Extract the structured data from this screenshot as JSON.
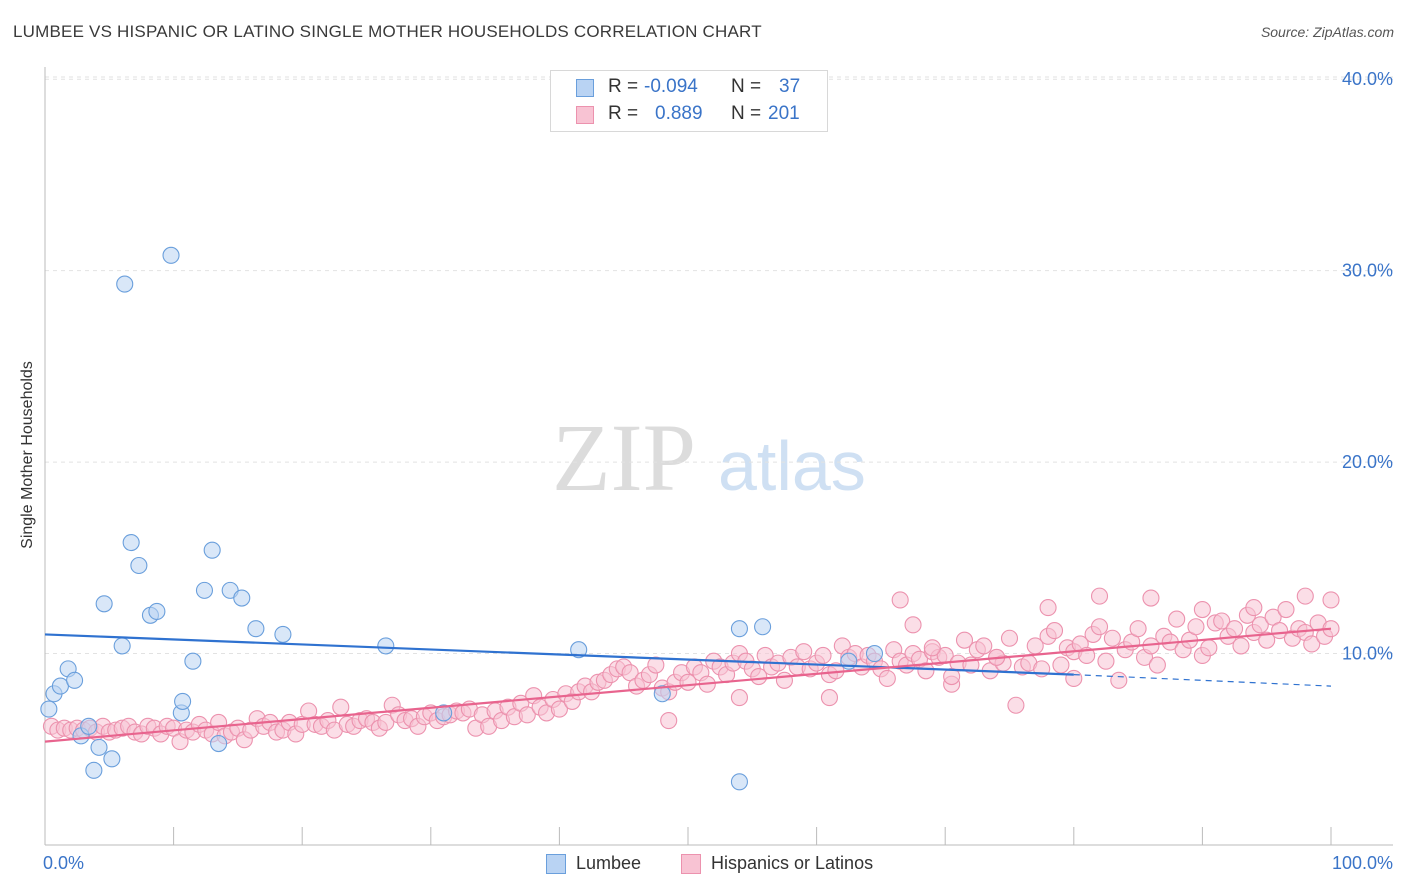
{
  "title": "LUMBEE VS HISPANIC OR LATINO SINGLE MOTHER HOUSEHOLDS CORRELATION CHART",
  "source": "Source: ZipAtlas.com",
  "watermark": {
    "zip": "ZIP",
    "atlas": "atlas"
  },
  "legend": {
    "r_label": "R =",
    "n_label": "N =",
    "rows": [
      {
        "r": "-0.094",
        "n": "37"
      },
      {
        "r": "0.889",
        "n": "201"
      }
    ]
  },
  "colors": {
    "lumbee_fill": "#b9d3f3",
    "lumbee_stroke": "#6a9fdc",
    "lumbee_line": "#2f72d0",
    "hisp_fill": "#f8c3d3",
    "hisp_stroke": "#ec92ae",
    "hisp_line": "#e8648e",
    "tick_label": "#3a74c8"
  },
  "chart_data": {
    "type": "scatter",
    "title": "LUMBEE VS HISPANIC OR LATINO SINGLE MOTHER HOUSEHOLDS CORRELATION CHART",
    "xlabel": "",
    "ylabel": "Single Mother Households",
    "xlim": [
      0,
      100
    ],
    "ylim": [
      0,
      40.9
    ],
    "x_tick_labels": [
      "0.0%",
      "100.0%"
    ],
    "y_ticks": [
      10,
      20,
      30,
      40
    ],
    "y_tick_labels": [
      "10.0%",
      "20.0%",
      "30.0%",
      "40.0%"
    ],
    "grid": "horizontal dashed",
    "legend_position": "top-center and bottom",
    "series": [
      {
        "name": "Lumbee",
        "r": -0.094,
        "n": 37,
        "trend": {
          "x0": 0,
          "y0": 11.0,
          "x1": 80,
          "y1": 8.9,
          "x_end": 100,
          "y_end": 8.3
        },
        "points": [
          [
            0.3,
            7.1
          ],
          [
            0.7,
            7.9
          ],
          [
            1.2,
            8.3
          ],
          [
            1.8,
            9.2
          ],
          [
            2.3,
            8.6
          ],
          [
            2.8,
            5.7
          ],
          [
            3.4,
            6.2
          ],
          [
            3.8,
            3.9
          ],
          [
            4.2,
            5.1
          ],
          [
            4.6,
            12.6
          ],
          [
            5.2,
            4.5
          ],
          [
            6.0,
            10.4
          ],
          [
            6.7,
            15.8
          ],
          [
            7.3,
            14.6
          ],
          [
            8.2,
            12.0
          ],
          [
            8.7,
            12.2
          ],
          [
            9.8,
            30.8
          ],
          [
            6.2,
            29.3
          ],
          [
            10.6,
            6.9
          ],
          [
            10.7,
            7.5
          ],
          [
            11.5,
            9.6
          ],
          [
            12.4,
            13.3
          ],
          [
            13.0,
            15.4
          ],
          [
            13.5,
            5.3
          ],
          [
            14.4,
            13.3
          ],
          [
            15.3,
            12.9
          ],
          [
            16.4,
            11.3
          ],
          [
            18.5,
            11.0
          ],
          [
            26.5,
            10.4
          ],
          [
            31.0,
            6.9
          ],
          [
            41.5,
            10.2
          ],
          [
            48.0,
            7.9
          ],
          [
            54.0,
            11.3
          ],
          [
            54.0,
            3.3
          ],
          [
            55.8,
            11.4
          ],
          [
            62.5,
            9.6
          ],
          [
            64.5,
            10.0
          ]
        ]
      },
      {
        "name": "Hispanics or Latinos",
        "r": 0.889,
        "n": 201,
        "trend": {
          "x0": 0,
          "y0": 5.4,
          "x1": 100,
          "y1": 11.3
        },
        "points": [
          [
            0.5,
            6.2
          ],
          [
            1.0,
            6.0
          ],
          [
            1.5,
            6.1
          ],
          [
            2.0,
            6.0
          ],
          [
            2.5,
            6.1
          ],
          [
            3.0,
            6.0
          ],
          [
            3.5,
            6.1
          ],
          [
            4.0,
            5.9
          ],
          [
            4.5,
            6.2
          ],
          [
            5.0,
            5.9
          ],
          [
            5.5,
            6.0
          ],
          [
            6.0,
            6.1
          ],
          [
            6.5,
            6.2
          ],
          [
            7.0,
            5.9
          ],
          [
            7.5,
            5.8
          ],
          [
            8.0,
            6.2
          ],
          [
            8.5,
            6.1
          ],
          [
            9.0,
            5.8
          ],
          [
            9.5,
            6.2
          ],
          [
            10.0,
            6.1
          ],
          [
            10.5,
            5.4
          ],
          [
            11.0,
            6.0
          ],
          [
            11.5,
            5.9
          ],
          [
            12.0,
            6.3
          ],
          [
            12.5,
            6.0
          ],
          [
            13.0,
            5.8
          ],
          [
            13.5,
            6.4
          ],
          [
            14.0,
            5.7
          ],
          [
            14.5,
            5.9
          ],
          [
            15.0,
            6.1
          ],
          [
            15.5,
            5.5
          ],
          [
            16.0,
            6.0
          ],
          [
            16.5,
            6.6
          ],
          [
            17.0,
            6.2
          ],
          [
            17.5,
            6.4
          ],
          [
            18.0,
            5.9
          ],
          [
            18.5,
            6.0
          ],
          [
            19.0,
            6.4
          ],
          [
            19.5,
            5.8
          ],
          [
            20.0,
            6.3
          ],
          [
            20.5,
            7.0
          ],
          [
            21.0,
            6.3
          ],
          [
            21.5,
            6.2
          ],
          [
            22.0,
            6.5
          ],
          [
            22.5,
            6.0
          ],
          [
            23.0,
            7.2
          ],
          [
            23.5,
            6.3
          ],
          [
            24.0,
            6.2
          ],
          [
            24.5,
            6.5
          ],
          [
            25.0,
            6.6
          ],
          [
            25.5,
            6.4
          ],
          [
            26.0,
            6.1
          ],
          [
            26.5,
            6.4
          ],
          [
            27.0,
            7.3
          ],
          [
            27.5,
            6.8
          ],
          [
            28.0,
            6.5
          ],
          [
            28.5,
            6.6
          ],
          [
            29.0,
            6.2
          ],
          [
            29.5,
            6.7
          ],
          [
            30.0,
            6.9
          ],
          [
            30.5,
            6.5
          ],
          [
            31.0,
            6.7
          ],
          [
            31.5,
            6.8
          ],
          [
            32.0,
            7.0
          ],
          [
            32.5,
            6.9
          ],
          [
            33.0,
            7.1
          ],
          [
            33.5,
            6.1
          ],
          [
            34.0,
            6.8
          ],
          [
            34.5,
            6.2
          ],
          [
            35.0,
            7.0
          ],
          [
            35.5,
            6.5
          ],
          [
            36.0,
            7.2
          ],
          [
            36.5,
            6.7
          ],
          [
            37.0,
            7.4
          ],
          [
            37.5,
            6.8
          ],
          [
            38.0,
            7.8
          ],
          [
            38.5,
            7.2
          ],
          [
            39.0,
            6.9
          ],
          [
            39.5,
            7.6
          ],
          [
            40.0,
            7.1
          ],
          [
            40.5,
            7.9
          ],
          [
            41.0,
            7.5
          ],
          [
            41.5,
            8.0
          ],
          [
            42.0,
            8.3
          ],
          [
            42.5,
            8.0
          ],
          [
            43.0,
            8.5
          ],
          [
            43.5,
            8.6
          ],
          [
            44.0,
            8.9
          ],
          [
            44.5,
            9.2
          ],
          [
            45.0,
            9.3
          ],
          [
            45.5,
            9.0
          ],
          [
            46.0,
            8.3
          ],
          [
            46.5,
            8.6
          ],
          [
            47.0,
            8.9
          ],
          [
            47.5,
            9.4
          ],
          [
            48.0,
            8.2
          ],
          [
            48.5,
            8.0
          ],
          [
            49.0,
            8.5
          ],
          [
            49.5,
            9.0
          ],
          [
            50.0,
            8.5
          ],
          [
            50.5,
            9.3
          ],
          [
            51.0,
            9.0
          ],
          [
            51.5,
            8.4
          ],
          [
            52.0,
            9.6
          ],
          [
            52.5,
            9.3
          ],
          [
            53.0,
            8.9
          ],
          [
            53.5,
            9.5
          ],
          [
            54.0,
            10.0
          ],
          [
            54.5,
            9.6
          ],
          [
            55.0,
            9.2
          ],
          [
            55.5,
            8.8
          ],
          [
            56.0,
            9.9
          ],
          [
            56.5,
            9.3
          ],
          [
            57.0,
            9.5
          ],
          [
            57.5,
            8.6
          ],
          [
            58.0,
            9.8
          ],
          [
            58.5,
            9.3
          ],
          [
            59.0,
            10.1
          ],
          [
            59.5,
            9.2
          ],
          [
            60.0,
            9.5
          ],
          [
            60.5,
            9.9
          ],
          [
            61.0,
            8.9
          ],
          [
            61.5,
            9.1
          ],
          [
            62.0,
            10.4
          ],
          [
            62.5,
            9.8
          ],
          [
            63.0,
            10.0
          ],
          [
            63.5,
            9.3
          ],
          [
            64.0,
            9.9
          ],
          [
            64.5,
            9.6
          ],
          [
            65.0,
            9.2
          ],
          [
            65.5,
            8.7
          ],
          [
            66.0,
            10.2
          ],
          [
            66.5,
            9.6
          ],
          [
            67.0,
            9.4
          ],
          [
            67.5,
            10.0
          ],
          [
            68.0,
            9.7
          ],
          [
            68.5,
            9.1
          ],
          [
            69.0,
            10.1
          ],
          [
            69.5,
            9.8
          ],
          [
            70.0,
            9.9
          ],
          [
            70.5,
            8.4
          ],
          [
            71.0,
            9.5
          ],
          [
            71.5,
            10.7
          ],
          [
            72.0,
            9.4
          ],
          [
            72.5,
            10.2
          ],
          [
            73.0,
            10.4
          ],
          [
            73.5,
            9.1
          ],
          [
            74.0,
            9.8
          ],
          [
            74.5,
            9.5
          ],
          [
            75.0,
            10.8
          ],
          [
            75.5,
            7.3
          ],
          [
            76.0,
            9.3
          ],
          [
            76.5,
            9.5
          ],
          [
            77.0,
            10.4
          ],
          [
            77.5,
            9.2
          ],
          [
            78.0,
            10.9
          ],
          [
            78.5,
            11.2
          ],
          [
            79.0,
            9.4
          ],
          [
            79.5,
            10.3
          ],
          [
            80.0,
            10.1
          ],
          [
            80.5,
            10.5
          ],
          [
            81.0,
            9.9
          ],
          [
            81.5,
            11.0
          ],
          [
            82.0,
            11.4
          ],
          [
            82.5,
            9.6
          ],
          [
            83.0,
            10.8
          ],
          [
            83.5,
            8.6
          ],
          [
            84.0,
            10.2
          ],
          [
            84.5,
            10.6
          ],
          [
            85.0,
            11.3
          ],
          [
            85.5,
            9.8
          ],
          [
            86.0,
            10.4
          ],
          [
            86.5,
            9.4
          ],
          [
            87.0,
            10.9
          ],
          [
            87.5,
            10.6
          ],
          [
            88.0,
            11.8
          ],
          [
            88.5,
            10.2
          ],
          [
            89.0,
            10.7
          ],
          [
            89.5,
            11.4
          ],
          [
            90.0,
            9.9
          ],
          [
            90.5,
            10.3
          ],
          [
            91.0,
            11.6
          ],
          [
            91.5,
            11.7
          ],
          [
            92.0,
            10.9
          ],
          [
            92.5,
            11.3
          ],
          [
            93.0,
            10.4
          ],
          [
            93.5,
            12.0
          ],
          [
            94.0,
            11.1
          ],
          [
            94.5,
            11.5
          ],
          [
            95.0,
            10.7
          ],
          [
            95.5,
            11.9
          ],
          [
            96.0,
            11.2
          ],
          [
            96.5,
            12.3
          ],
          [
            97.0,
            10.8
          ],
          [
            97.5,
            11.3
          ],
          [
            98.0,
            11.1
          ],
          [
            98.5,
            10.5
          ],
          [
            99.0,
            11.6
          ],
          [
            99.5,
            10.9
          ],
          [
            100.0,
            11.3
          ],
          [
            66.5,
            12.8
          ],
          [
            67.5,
            11.5
          ],
          [
            69.0,
            10.3
          ],
          [
            74.0,
            9.8
          ],
          [
            78.0,
            12.4
          ],
          [
            82.0,
            13.0
          ],
          [
            86.0,
            12.9
          ],
          [
            90.0,
            12.3
          ],
          [
            94.0,
            12.4
          ],
          [
            98.0,
            13.0
          ],
          [
            100.0,
            12.8
          ],
          [
            48.5,
            6.5
          ],
          [
            54.0,
            7.7
          ],
          [
            61.0,
            7.7
          ],
          [
            70.5,
            8.8
          ],
          [
            80.0,
            8.7
          ]
        ]
      }
    ]
  },
  "bottom_legend": [
    {
      "label": "Lumbee"
    },
    {
      "label": "Hispanics or Latinos"
    }
  ]
}
